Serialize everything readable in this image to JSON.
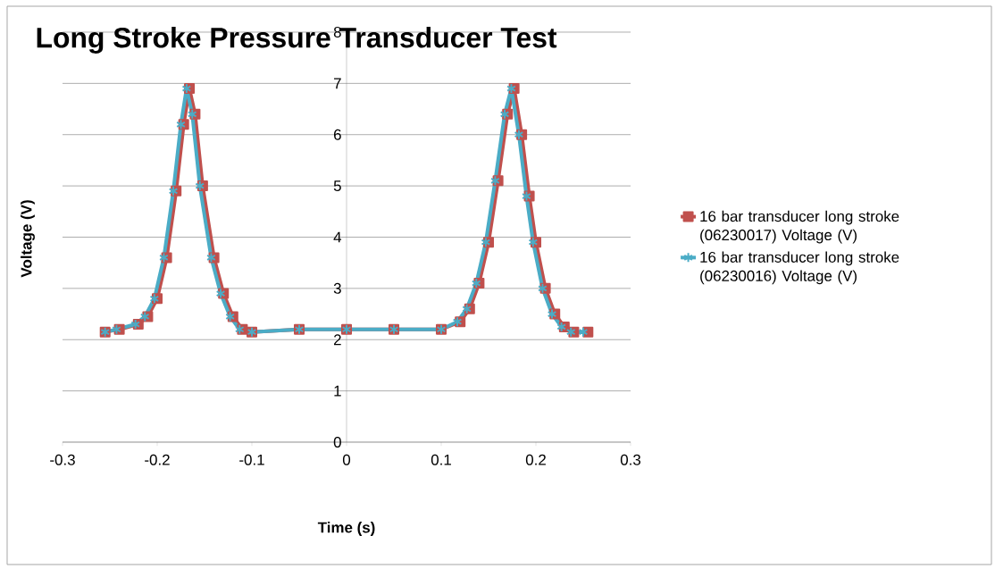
{
  "chart_data": {
    "type": "line",
    "title": "Long Stroke Pressure Transducer Test",
    "xlabel": "Time (s)",
    "ylabel": "Voltage (V)",
    "xlim": [
      -0.3,
      0.3
    ],
    "xticks": [
      -0.3,
      -0.2,
      -0.1,
      0,
      0.1,
      0.2,
      0.3
    ],
    "ylim": [
      0,
      8
    ],
    "yticks": [
      0,
      1,
      2,
      3,
      4,
      5,
      6,
      7,
      8
    ],
    "grid": "y",
    "legend": "right",
    "series": [
      {
        "name": "16 bar transducer long stroke (06230017) Voltage (V)",
        "color": "#c0504d",
        "marker": "square",
        "x": [
          -0.255,
          -0.24,
          -0.22,
          -0.21,
          -0.2,
          -0.19,
          -0.18,
          -0.172,
          -0.166,
          -0.16,
          -0.152,
          -0.14,
          -0.13,
          -0.12,
          -0.11,
          -0.1,
          -0.05,
          0,
          0.05,
          0.1,
          0.12,
          0.13,
          0.14,
          0.15,
          0.16,
          0.17,
          0.177,
          0.185,
          0.193,
          0.2,
          0.21,
          0.22,
          0.23,
          0.24,
          0.255
        ],
        "values": [
          2.15,
          2.2,
          2.3,
          2.45,
          2.8,
          3.6,
          4.9,
          6.2,
          6.9,
          6.4,
          5.0,
          3.6,
          2.9,
          2.45,
          2.2,
          2.15,
          2.2,
          2.2,
          2.2,
          2.2,
          2.35,
          2.6,
          3.1,
          3.9,
          5.1,
          6.4,
          6.9,
          6.0,
          4.8,
          3.9,
          3.0,
          2.5,
          2.25,
          2.15,
          2.15
        ]
      },
      {
        "name": "16 bar transducer long stroke (06230016) Voltage (V)",
        "color": "#4bacc6",
        "marker": "cross",
        "x": [
          -0.255,
          -0.243,
          -0.223,
          -0.213,
          -0.203,
          -0.193,
          -0.183,
          -0.175,
          -0.169,
          -0.163,
          -0.155,
          -0.143,
          -0.133,
          -0.123,
          -0.113,
          -0.1,
          -0.05,
          0,
          0.05,
          0.1,
          0.117,
          0.127,
          0.137,
          0.147,
          0.157,
          0.167,
          0.174,
          0.182,
          0.19,
          0.197,
          0.207,
          0.217,
          0.227,
          0.237,
          0.25
        ],
        "values": [
          2.15,
          2.2,
          2.3,
          2.45,
          2.8,
          3.6,
          4.9,
          6.2,
          6.9,
          6.4,
          5.0,
          3.6,
          2.9,
          2.45,
          2.2,
          2.15,
          2.2,
          2.2,
          2.2,
          2.2,
          2.35,
          2.6,
          3.1,
          3.9,
          5.1,
          6.4,
          6.9,
          6.0,
          4.8,
          3.9,
          3.0,
          2.5,
          2.25,
          2.15,
          2.15
        ]
      }
    ]
  }
}
